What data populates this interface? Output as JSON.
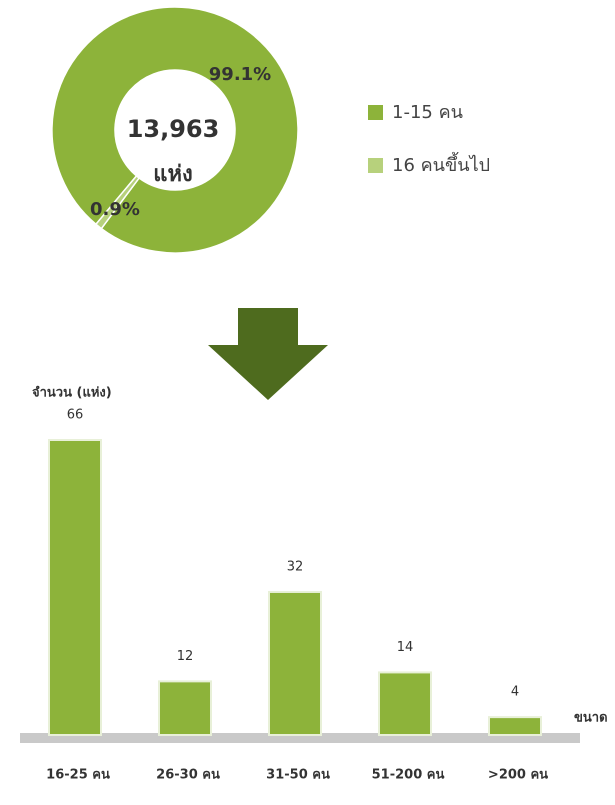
{
  "chart_data": [
    {
      "type": "pie",
      "center_label": [
        "13,963",
        "แห่ง"
      ],
      "categories": [
        "1-15 คน",
        "16 คนขึ้นไป"
      ],
      "values": [
        99.1,
        0.9
      ],
      "value_labels": [
        "99.1%",
        "0.9%"
      ],
      "colors": [
        "#8db33a",
        "#b7d17c"
      ]
    },
    {
      "type": "bar",
      "y_label": "จำนวน (แห่ง)",
      "x_label": "ขนาด",
      "categories": [
        "16-25 คน",
        "26-30 คน",
        "31-50 คน",
        "51-200 คน",
        ">200 คน"
      ],
      "values": [
        66,
        12,
        32,
        14,
        4
      ],
      "color": "#8db33a"
    }
  ]
}
